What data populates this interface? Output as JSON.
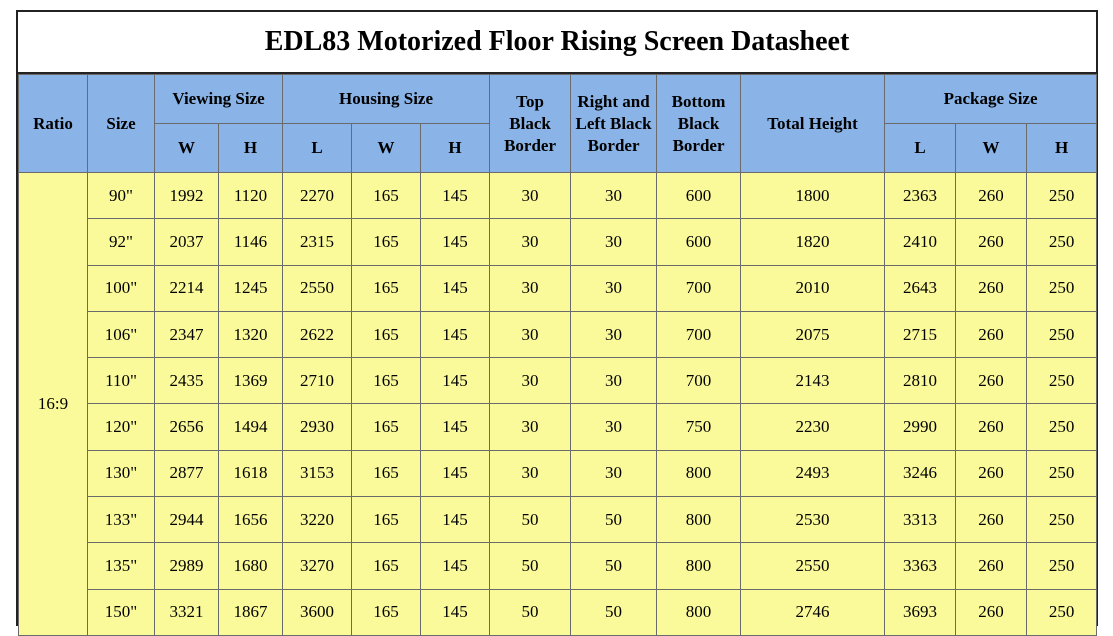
{
  "title": "EDL83 Motorized Floor Rising Screen Datasheet",
  "headers": {
    "ratio": "Ratio",
    "size": "Size",
    "viewing_size": "Viewing Size",
    "housing_size": "Housing Size",
    "top_black_border": [
      "Top",
      "Black",
      "Border"
    ],
    "side_black_border": [
      "Right and",
      "Left Black",
      "Border"
    ],
    "bottom_black_border": [
      "Bottom",
      "Black",
      "Border"
    ],
    "total_height": "Total Height",
    "package_size": "Package Size",
    "sub": {
      "w": "W",
      "h": "H",
      "l": "L"
    }
  },
  "ratio_value": "16:9",
  "rows": [
    [
      "90\"",
      "1992",
      "1120",
      "2270",
      "165",
      "145",
      "30",
      "30",
      "600",
      "1800",
      "2363",
      "260",
      "250"
    ],
    [
      "92\"",
      "2037",
      "1146",
      "2315",
      "165",
      "145",
      "30",
      "30",
      "600",
      "1820",
      "2410",
      "260",
      "250"
    ],
    [
      "100\"",
      "2214",
      "1245",
      "2550",
      "165",
      "145",
      "30",
      "30",
      "700",
      "2010",
      "2643",
      "260",
      "250"
    ],
    [
      "106\"",
      "2347",
      "1320",
      "2622",
      "165",
      "145",
      "30",
      "30",
      "700",
      "2075",
      "2715",
      "260",
      "250"
    ],
    [
      "110\"",
      "2435",
      "1369",
      "2710",
      "165",
      "145",
      "30",
      "30",
      "700",
      "2143",
      "2810",
      "260",
      "250"
    ],
    [
      "120\"",
      "2656",
      "1494",
      "2930",
      "165",
      "145",
      "30",
      "30",
      "750",
      "2230",
      "2990",
      "260",
      "250"
    ],
    [
      "130\"",
      "2877",
      "1618",
      "3153",
      "165",
      "145",
      "30",
      "30",
      "800",
      "2493",
      "3246",
      "260",
      "250"
    ],
    [
      "133\"",
      "2944",
      "1656",
      "3220",
      "165",
      "145",
      "50",
      "50",
      "800",
      "2530",
      "3313",
      "260",
      "250"
    ],
    [
      "135\"",
      "2989",
      "1680",
      "3270",
      "165",
      "145",
      "50",
      "50",
      "800",
      "2550",
      "3363",
      "260",
      "250"
    ],
    [
      "150\"",
      "3321",
      "1867",
      "3600",
      "165",
      "145",
      "50",
      "50",
      "800",
      "2746",
      "3693",
      "260",
      "250"
    ]
  ],
  "colors": {
    "header_bg": "#8ab4e8",
    "body_bg": "#fafa9a"
  }
}
